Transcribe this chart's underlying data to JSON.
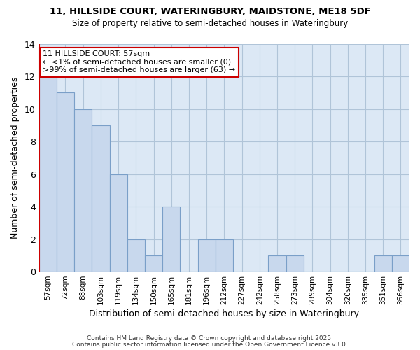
{
  "title1": "11, HILLSIDE COURT, WATERINGBURY, MAIDSTONE, ME18 5DF",
  "title2": "Size of property relative to semi-detached houses in Wateringbury",
  "xlabel": "Distribution of semi-detached houses by size in Wateringbury",
  "ylabel": "Number of semi-detached properties",
  "footer1": "Contains HM Land Registry data © Crown copyright and database right 2025.",
  "footer2": "Contains public sector information licensed under the Open Government Licence v3.0.",
  "categories": [
    "57sqm",
    "72sqm",
    "88sqm",
    "103sqm",
    "119sqm",
    "134sqm",
    "150sqm",
    "165sqm",
    "181sqm",
    "196sqm",
    "212sqm",
    "227sqm",
    "242sqm",
    "258sqm",
    "273sqm",
    "289sqm",
    "304sqm",
    "320sqm",
    "335sqm",
    "351sqm",
    "366sqm"
  ],
  "values": [
    12,
    11,
    10,
    9,
    6,
    2,
    1,
    4,
    0,
    2,
    2,
    0,
    0,
    1,
    1,
    0,
    0,
    0,
    0,
    1,
    1
  ],
  "bar_color": "#c8d8ed",
  "bar_edge_color": "#7a9fc8",
  "highlight_color": "#cc0000",
  "annotation_title": "11 HILLSIDE COURT: 57sqm",
  "annotation_line1": "← <1% of semi-detached houses are smaller (0)",
  "annotation_line2": ">99% of semi-detached houses are larger (63) →",
  "plot_bg_color": "#dce8f5",
  "fig_bg_color": "#ffffff",
  "grid_color": "#b0c4d8",
  "ylim": [
    0,
    14
  ],
  "yticks": [
    0,
    2,
    4,
    6,
    8,
    10,
    12,
    14
  ]
}
